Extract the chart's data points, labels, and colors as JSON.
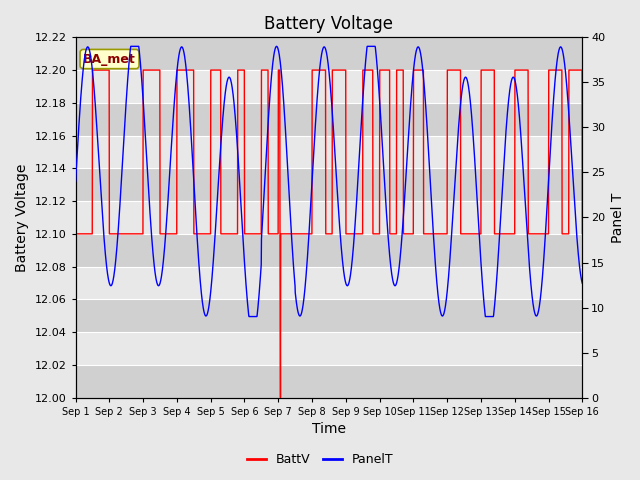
{
  "title": "Battery Voltage",
  "xlabel": "Time",
  "ylabel_left": "Battery Voltage",
  "ylabel_right": "Panel T",
  "ylim_left": [
    12.0,
    12.22
  ],
  "ylim_right": [
    0,
    40
  ],
  "yticks_left": [
    12.0,
    12.02,
    12.04,
    12.06,
    12.08,
    12.1,
    12.12,
    12.14,
    12.16,
    12.18,
    12.2,
    12.22
  ],
  "yticks_right": [
    0,
    5,
    10,
    15,
    20,
    25,
    30,
    35,
    40
  ],
  "xtick_labels": [
    "Sep 1",
    "Sep 2",
    "Sep 3",
    "Sep 4",
    "Sep 5",
    "Sep 6",
    "Sep 7",
    "Sep 8",
    "Sep 9",
    "Sep 10",
    "Sep 11",
    "Sep 12",
    "Sep 13",
    "Sep 14",
    "Sep 15",
    "Sep 16"
  ],
  "annotation_text": "BA_met",
  "batt_color": "#ff0000",
  "panel_color": "#0000ff",
  "bg_color": "#e8e8e8",
  "legend_labels": [
    "BattV",
    "PanelT"
  ],
  "title_fontsize": 12,
  "axis_label_fontsize": 10,
  "band_colors": [
    "#d0d0d0",
    "#e8e8e8"
  ],
  "n_days": 15
}
